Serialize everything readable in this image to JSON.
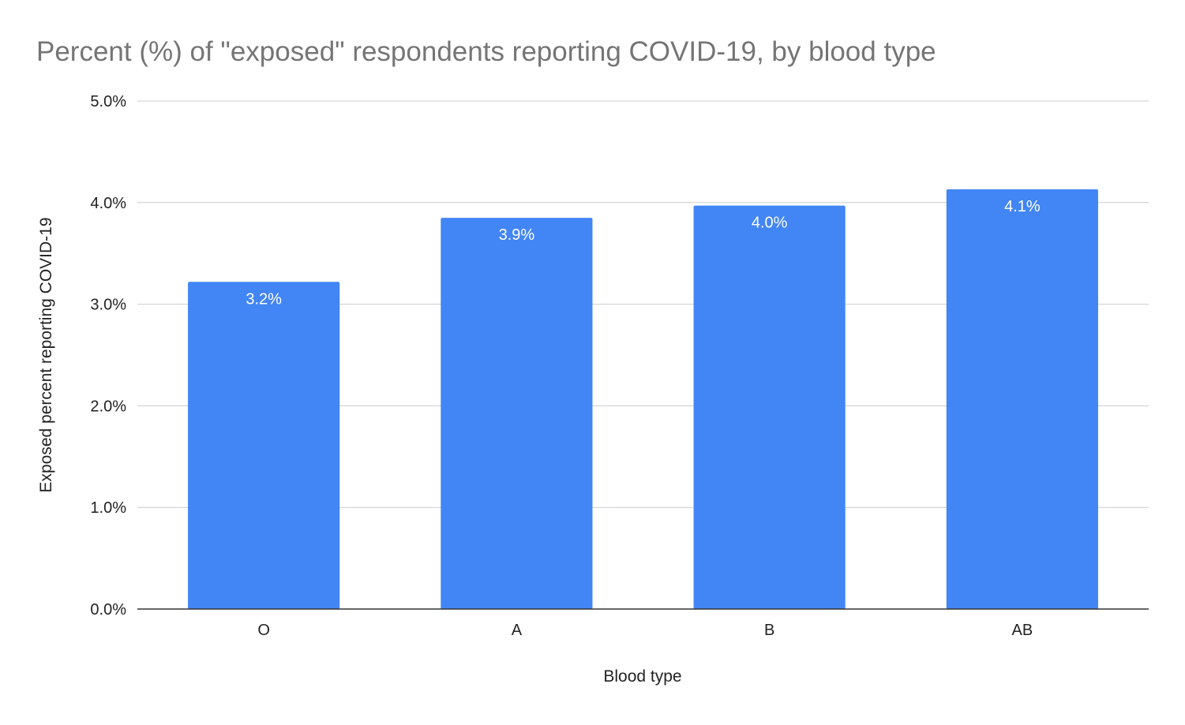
{
  "chart_data": {
    "type": "bar",
    "title": "Percent (%) of \"exposed\" respondents reporting COVID-19, by blood type",
    "xlabel": "Blood type",
    "ylabel": "Exposed percent reporting COVID-19",
    "categories": [
      "O",
      "A",
      "B",
      "AB"
    ],
    "values": [
      3.22,
      3.85,
      3.97,
      4.13
    ],
    "data_labels": [
      "3.2%",
      "3.9%",
      "4.0%",
      "4.1%"
    ],
    "ylim": [
      0,
      5
    ],
    "yticks": [
      0,
      1,
      2,
      3,
      4,
      5
    ],
    "ytick_labels": [
      "0.0%",
      "1.0%",
      "2.0%",
      "3.0%",
      "4.0%",
      "5.0%"
    ],
    "grid": true,
    "legend": "none",
    "colors": {
      "bar": "#4285f4",
      "gridline": "#cccccc",
      "baseline": "#333333",
      "title": "#757575",
      "data_label": "#ffffff"
    }
  }
}
